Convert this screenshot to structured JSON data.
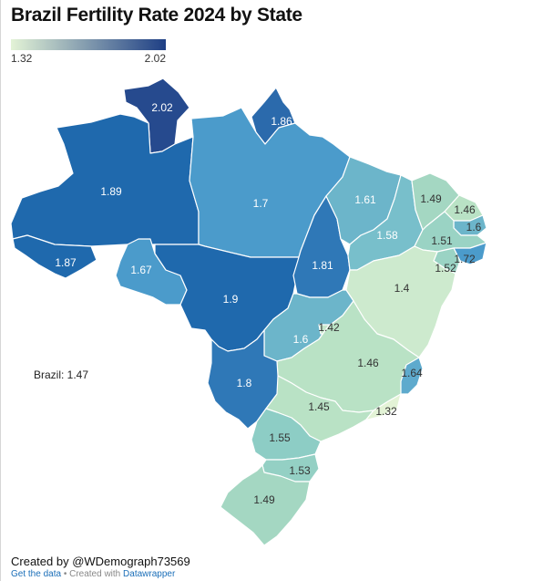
{
  "title": "Brazil Fertility Rate 2024 by State",
  "legend": {
    "min_label": "1.32",
    "max_label": "2.02",
    "min": 1.32,
    "max": 2.02,
    "color_low": "#e3f3d6",
    "color_high": "#1e3f85"
  },
  "national_label": "Brazil: 1.47",
  "credit": "Created by @WDemograph73569",
  "footer": {
    "get_data": "Get the data",
    "separator": " • Created with ",
    "tool": "Datawrapper"
  },
  "states": [
    {
      "id": "rr",
      "value": "2.02",
      "fill": "#264a8e",
      "label_color": "#ffffff"
    },
    {
      "id": "ap",
      "value": "1.86",
      "fill": "#2b6aac",
      "label_color": "#ffffff"
    },
    {
      "id": "am",
      "value": "1.89",
      "fill": "#1f69ad",
      "label_color": "#ffffff"
    },
    {
      "id": "pa",
      "value": "1.7",
      "fill": "#4b9bcb",
      "label_color": "#ffffff"
    },
    {
      "id": "ac",
      "value": "1.87",
      "fill": "#1f69ad",
      "label_color": "#ffffff"
    },
    {
      "id": "ro",
      "value": "1.67",
      "fill": "#4b9bcb",
      "label_color": "#ffffff"
    },
    {
      "id": "mt",
      "value": "1.9",
      "fill": "#1f69ad",
      "label_color": "#ffffff"
    },
    {
      "id": "to",
      "value": "1.81",
      "fill": "#2f78b7",
      "label_color": "#ffffff"
    },
    {
      "id": "ma",
      "value": "1.61",
      "fill": "#6cb5ca",
      "label_color": "#ffffff"
    },
    {
      "id": "pi",
      "value": "1.58",
      "fill": "#78bfcb",
      "label_color": "#ffffff"
    },
    {
      "id": "ce",
      "value": "1.49",
      "fill": "#a4d7c2",
      "label_color": "#333333"
    },
    {
      "id": "rn",
      "value": "1.46",
      "fill": "#b9e2c5",
      "label_color": "#333333"
    },
    {
      "id": "pb",
      "value": "1.6",
      "fill": "#6cb5ca",
      "label_color": "#333333"
    },
    {
      "id": "pe",
      "value": "1.51",
      "fill": "#9ad3c4",
      "label_color": "#333333"
    },
    {
      "id": "al",
      "value": "1.72",
      "fill": "#4b9bcb",
      "label_color": "#333333"
    },
    {
      "id": "se",
      "value": "1.52",
      "fill": "#9ad3c4",
      "label_color": "#333333"
    },
    {
      "id": "ba",
      "value": "1.4",
      "fill": "#cdeace",
      "label_color": "#333333"
    },
    {
      "id": "go",
      "value": "1.6",
      "fill": "#6cb5ca",
      "label_color": "#ffffff"
    },
    {
      "id": "df",
      "value": "1.42",
      "fill": "#c6e7cc",
      "label_color": "#333333"
    },
    {
      "id": "mg",
      "value": "1.46",
      "fill": "#b9e2c5",
      "label_color": "#333333"
    },
    {
      "id": "es",
      "value": "1.64",
      "fill": "#5eaacd",
      "label_color": "#333333"
    },
    {
      "id": "ms",
      "value": "1.8",
      "fill": "#2f78b7",
      "label_color": "#ffffff"
    },
    {
      "id": "sp",
      "value": "1.45",
      "fill": "#b9e2c5",
      "label_color": "#333333"
    },
    {
      "id": "rj",
      "value": "1.32",
      "fill": "#e3f3d6",
      "label_color": "#333333"
    },
    {
      "id": "pr",
      "value": "1.55",
      "fill": "#8dcdc5",
      "label_color": "#333333"
    },
    {
      "id": "sc",
      "value": "1.53",
      "fill": "#94d0c4",
      "label_color": "#333333"
    },
    {
      "id": "rs",
      "value": "1.49",
      "fill": "#a4d7c2",
      "label_color": "#333333"
    }
  ]
}
